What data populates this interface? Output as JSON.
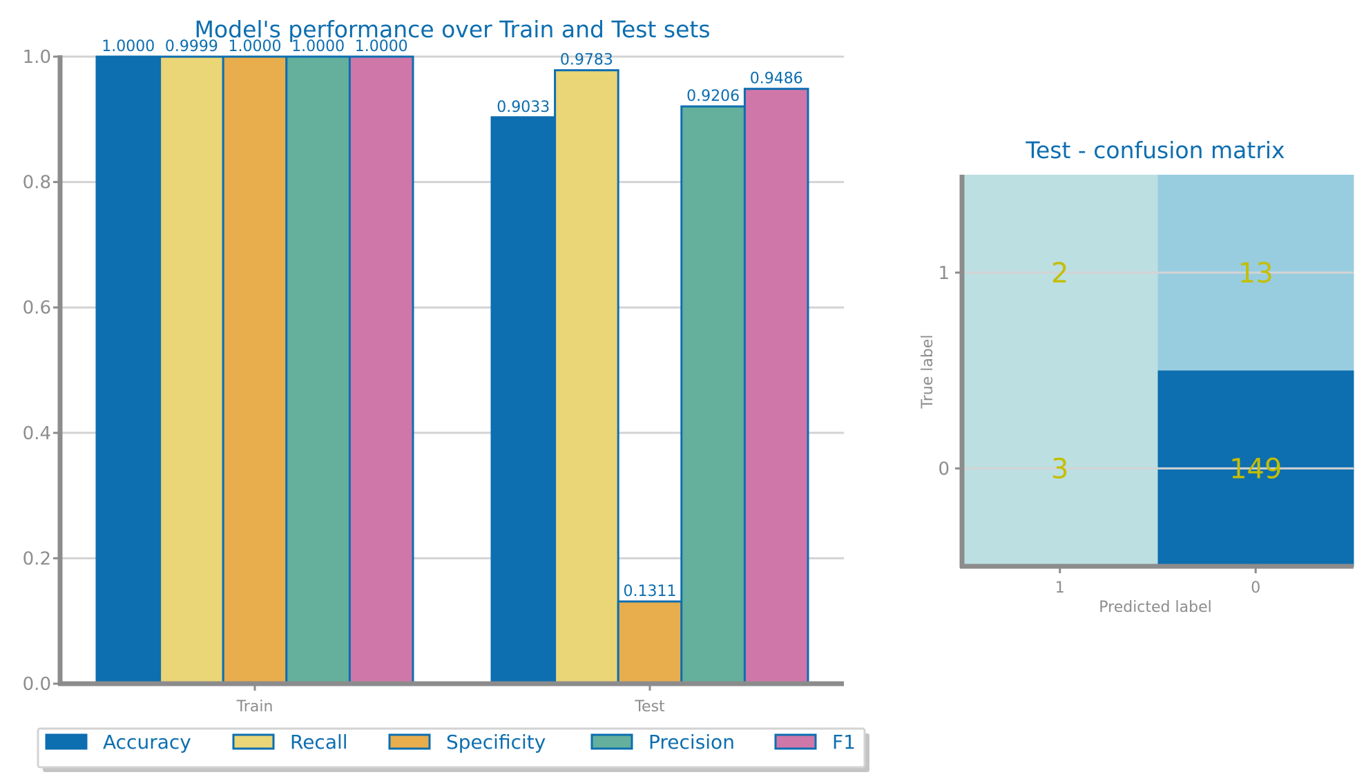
{
  "colors": {
    "title": "#0d6eb0",
    "tick": "#8d8d8d",
    "axis": "#8c8c8c",
    "grid": "#d3d3d3",
    "bar_edge": "#0d6eb0",
    "cm_text": "#c4be00",
    "cm_low": "#bcdfe2",
    "cm_mid": "#98cde0",
    "cm_high": "#0d6eb0"
  },
  "chart_data": [
    {
      "type": "bar",
      "title": "Model's performance over Train and Test sets",
      "categories": [
        "Train",
        "Test"
      ],
      "series": [
        {
          "name": "Accuracy",
          "color": "#0d6eb0",
          "values": [
            1.0,
            0.9033
          ],
          "labels": [
            "1.0000",
            "0.9033"
          ]
        },
        {
          "name": "Recall",
          "color": "#ead577",
          "values": [
            0.9999,
            0.9783
          ],
          "labels": [
            "0.9999",
            "0.9783"
          ]
        },
        {
          "name": "Specificity",
          "color": "#e8ad4c",
          "values": [
            1.0,
            0.1311
          ],
          "labels": [
            "1.0000",
            "0.1311"
          ]
        },
        {
          "name": "Precision",
          "color": "#64b09c",
          "values": [
            1.0,
            0.9206
          ],
          "labels": [
            "1.0000",
            "0.9206"
          ]
        },
        {
          "name": "F1",
          "color": "#d077aa",
          "values": [
            1.0,
            0.9486
          ],
          "labels": [
            "1.0000",
            "0.9486"
          ]
        }
      ],
      "ylim": [
        0,
        1.0
      ],
      "yticks": [
        "0.0",
        "0.2",
        "0.4",
        "0.6",
        "0.8",
        "1.0"
      ],
      "grid": true,
      "legend": "bottom"
    },
    {
      "type": "heatmap",
      "title": "Test - confusion matrix",
      "xlabel": "Predicted label",
      "ylabel": "True label",
      "x_categories": [
        "1",
        "0"
      ],
      "y_categories": [
        "1",
        "0"
      ],
      "values": [
        [
          2,
          13
        ],
        [
          3,
          149
        ]
      ]
    }
  ]
}
